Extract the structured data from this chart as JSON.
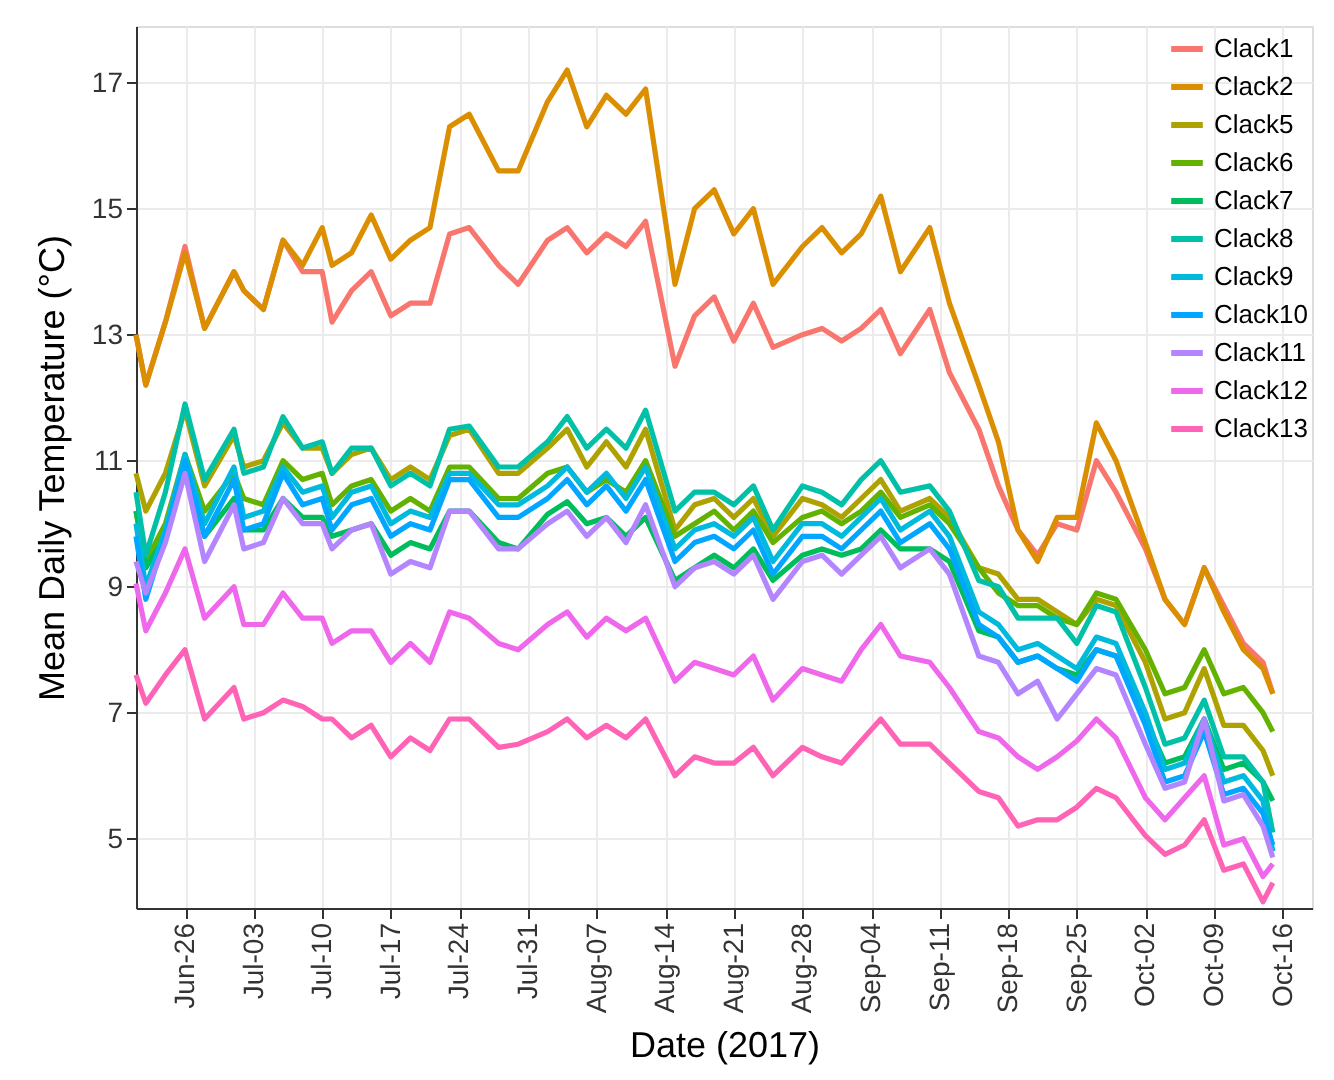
{
  "chart_data": {
    "type": "line",
    "xlabel": "Date (2017)",
    "ylabel": "Mean Daily Temperature (°C)",
    "x": [
      "2017-06-21",
      "2017-06-22",
      "2017-06-24",
      "2017-06-26",
      "2017-06-28",
      "2017-07-01",
      "2017-07-02",
      "2017-07-04",
      "2017-07-06",
      "2017-07-08",
      "2017-07-10",
      "2017-07-11",
      "2017-07-13",
      "2017-07-15",
      "2017-07-17",
      "2017-07-19",
      "2017-07-21",
      "2017-07-23",
      "2017-07-25",
      "2017-07-28",
      "2017-07-30",
      "2017-08-02",
      "2017-08-04",
      "2017-08-06",
      "2017-08-08",
      "2017-08-10",
      "2017-08-12",
      "2017-08-15",
      "2017-08-17",
      "2017-08-19",
      "2017-08-21",
      "2017-08-23",
      "2017-08-25",
      "2017-08-28",
      "2017-08-30",
      "2017-09-01",
      "2017-09-03",
      "2017-09-05",
      "2017-09-07",
      "2017-09-10",
      "2017-09-12",
      "2017-09-15",
      "2017-09-17",
      "2017-09-19",
      "2017-09-21",
      "2017-09-23",
      "2017-09-25",
      "2017-09-27",
      "2017-09-29",
      "2017-10-02",
      "2017-10-04",
      "2017-10-06",
      "2017-10-08",
      "2017-10-10",
      "2017-10-12",
      "2017-10-14",
      "2017-10-15"
    ],
    "series": [
      {
        "name": "Clack1",
        "color": "#f8766d",
        "values": [
          13.0,
          12.2,
          13.2,
          14.4,
          13.1,
          14.0,
          13.7,
          13.4,
          14.5,
          14.0,
          14.0,
          13.2,
          13.7,
          14.0,
          13.3,
          13.5,
          13.5,
          14.6,
          14.7,
          14.1,
          13.8,
          14.5,
          14.7,
          14.3,
          14.6,
          14.4,
          14.8,
          12.5,
          13.3,
          13.6,
          12.9,
          13.5,
          12.8,
          13.0,
          13.1,
          12.9,
          13.1,
          13.4,
          12.7,
          13.4,
          12.4,
          11.5,
          10.6,
          9.9,
          9.5,
          10.0,
          9.9,
          11.0,
          10.5,
          9.6,
          8.8,
          8.4,
          9.3,
          8.7,
          8.1,
          7.8,
          7.3
        ]
      },
      {
        "name": "Clack2",
        "color": "#db8e00",
        "values": [
          13.0,
          12.2,
          13.2,
          14.3,
          13.1,
          14.0,
          13.7,
          13.4,
          14.5,
          14.1,
          14.7,
          14.1,
          14.3,
          14.9,
          14.2,
          14.5,
          14.7,
          16.3,
          16.5,
          15.6,
          15.6,
          16.7,
          17.2,
          16.3,
          16.8,
          16.5,
          16.9,
          13.8,
          15.0,
          15.3,
          14.6,
          15.0,
          13.8,
          14.4,
          14.7,
          14.3,
          14.6,
          15.2,
          14.0,
          14.7,
          13.5,
          12.2,
          11.3,
          9.9,
          9.4,
          10.1,
          10.1,
          11.6,
          11.0,
          9.7,
          8.8,
          8.4,
          9.3,
          8.6,
          8.0,
          7.7,
          7.3
        ]
      },
      {
        "name": "Clack5",
        "color": "#aea200",
        "values": [
          10.8,
          10.2,
          10.8,
          11.8,
          10.6,
          11.4,
          10.9,
          11.0,
          11.6,
          11.2,
          11.2,
          10.8,
          11.1,
          11.2,
          10.7,
          10.9,
          10.7,
          11.4,
          11.5,
          10.8,
          10.8,
          11.2,
          11.5,
          10.9,
          11.3,
          10.9,
          11.5,
          9.9,
          10.3,
          10.4,
          10.1,
          10.4,
          9.8,
          10.4,
          10.3,
          10.1,
          10.4,
          10.7,
          10.2,
          10.4,
          10.1,
          9.3,
          9.2,
          8.8,
          8.8,
          8.6,
          8.4,
          8.8,
          8.7,
          7.8,
          6.9,
          7.0,
          7.7,
          6.8,
          6.8,
          6.4,
          6.0
        ]
      },
      {
        "name": "Clack6",
        "color": "#64b200",
        "values": [
          10.2,
          9.4,
          10.0,
          11.1,
          10.2,
          10.8,
          10.4,
          10.3,
          11.0,
          10.7,
          10.8,
          10.3,
          10.6,
          10.7,
          10.2,
          10.4,
          10.2,
          10.9,
          10.9,
          10.4,
          10.4,
          10.8,
          10.9,
          10.5,
          10.7,
          10.5,
          11.0,
          9.8,
          10.0,
          10.2,
          9.9,
          10.2,
          9.7,
          10.1,
          10.2,
          10.0,
          10.2,
          10.5,
          10.1,
          10.3,
          10.0,
          9.3,
          8.9,
          8.7,
          8.7,
          8.5,
          8.4,
          8.9,
          8.8,
          8.0,
          7.3,
          7.4,
          8.0,
          7.3,
          7.4,
          7.0,
          6.7
        ]
      },
      {
        "name": "Clack7",
        "color": "#00bd5c",
        "values": [
          10.2,
          9.3,
          9.8,
          10.8,
          9.8,
          10.4,
          9.9,
          9.9,
          10.4,
          10.1,
          10.1,
          9.8,
          9.9,
          10.0,
          9.5,
          9.7,
          9.6,
          10.2,
          10.2,
          9.7,
          9.6,
          10.15,
          10.35,
          10.0,
          10.1,
          9.8,
          10.1,
          9.1,
          9.3,
          9.5,
          9.3,
          9.6,
          9.1,
          9.5,
          9.6,
          9.5,
          9.6,
          9.9,
          9.6,
          9.6,
          9.4,
          8.3,
          8.2,
          7.8,
          7.9,
          7.7,
          7.6,
          8.0,
          7.9,
          6.9,
          6.2,
          6.3,
          6.9,
          6.1,
          6.2,
          5.9,
          5.6
        ]
      },
      {
        "name": "Clack8",
        "color": "#00c1a7",
        "values": [
          10.5,
          9.5,
          10.5,
          11.9,
          10.7,
          11.5,
          10.8,
          10.9,
          11.7,
          11.2,
          11.3,
          10.8,
          11.2,
          11.2,
          10.6,
          10.8,
          10.6,
          11.5,
          11.55,
          10.9,
          10.9,
          11.3,
          11.7,
          11.2,
          11.5,
          11.2,
          11.8,
          10.2,
          10.5,
          10.5,
          10.3,
          10.6,
          9.9,
          10.6,
          10.5,
          10.3,
          10.7,
          11.0,
          10.5,
          10.6,
          10.2,
          9.1,
          9.0,
          8.5,
          8.5,
          8.5,
          8.1,
          8.7,
          8.6,
          7.4,
          6.5,
          6.6,
          7.2,
          6.3,
          6.3,
          5.9,
          5.1
        ]
      },
      {
        "name": "Clack9",
        "color": "#00bade",
        "values": [
          10.0,
          9.0,
          9.9,
          11.1,
          10.0,
          10.9,
          10.1,
          10.2,
          10.9,
          10.5,
          10.6,
          10.1,
          10.5,
          10.6,
          10.0,
          10.2,
          10.1,
          10.8,
          10.8,
          10.3,
          10.3,
          10.6,
          10.9,
          10.5,
          10.8,
          10.4,
          10.9,
          9.6,
          9.9,
          10.0,
          9.8,
          10.1,
          9.4,
          10.0,
          10.0,
          9.8,
          10.1,
          10.4,
          9.9,
          10.2,
          9.8,
          8.6,
          8.4,
          8.0,
          8.1,
          7.9,
          7.7,
          8.2,
          8.1,
          7.0,
          6.1,
          6.2,
          6.9,
          5.9,
          6.0,
          5.6,
          4.8
        ]
      },
      {
        "name": "Clack10",
        "color": "#00a6ff",
        "values": [
          9.8,
          8.8,
          9.8,
          11.0,
          9.8,
          10.7,
          9.9,
          10.0,
          10.8,
          10.3,
          10.4,
          9.9,
          10.3,
          10.4,
          9.8,
          10.0,
          9.9,
          10.7,
          10.7,
          10.1,
          10.1,
          10.4,
          10.7,
          10.3,
          10.6,
          10.2,
          10.7,
          9.4,
          9.7,
          9.8,
          9.6,
          9.9,
          9.2,
          9.8,
          9.8,
          9.6,
          9.9,
          10.2,
          9.7,
          10.0,
          9.6,
          8.4,
          8.2,
          7.8,
          7.9,
          7.7,
          7.5,
          8.0,
          7.9,
          6.8,
          5.9,
          6.0,
          6.7,
          5.7,
          5.8,
          5.4,
          4.9
        ]
      },
      {
        "name": "Clack11",
        "color": "#b385ff",
        "values": [
          9.4,
          8.9,
          9.7,
          10.8,
          9.4,
          10.3,
          9.6,
          9.7,
          10.4,
          10.0,
          10.0,
          9.6,
          9.9,
          10.0,
          9.2,
          9.4,
          9.3,
          10.2,
          10.2,
          9.6,
          9.6,
          10.0,
          10.2,
          9.8,
          10.1,
          9.7,
          10.3,
          9.0,
          9.3,
          9.4,
          9.2,
          9.5,
          8.8,
          9.4,
          9.5,
          9.2,
          9.5,
          9.8,
          9.3,
          9.6,
          9.2,
          7.9,
          7.8,
          7.3,
          7.5,
          6.9,
          7.3,
          7.7,
          7.6,
          6.5,
          5.8,
          5.9,
          6.9,
          5.6,
          5.7,
          5.2,
          4.7
        ]
      },
      {
        "name": "Clack12",
        "color": "#ef67eb",
        "values": [
          9.05,
          8.3,
          8.9,
          9.6,
          8.5,
          9.0,
          8.4,
          8.4,
          8.9,
          8.5,
          8.5,
          8.1,
          8.3,
          8.3,
          7.8,
          8.1,
          7.8,
          8.6,
          8.5,
          8.1,
          8.0,
          8.4,
          8.6,
          8.2,
          8.5,
          8.3,
          8.5,
          7.5,
          7.8,
          7.7,
          7.6,
          7.9,
          7.2,
          7.7,
          7.6,
          7.5,
          8.0,
          8.4,
          7.9,
          7.8,
          7.4,
          6.7,
          6.6,
          6.3,
          6.1,
          6.3,
          6.55,
          6.9,
          6.6,
          5.65,
          5.3,
          5.65,
          6.0,
          4.9,
          5.0,
          4.4,
          4.6
        ]
      },
      {
        "name": "Clack13",
        "color": "#ff63b6",
        "values": [
          7.6,
          7.15,
          7.6,
          8.0,
          6.9,
          7.4,
          6.9,
          7.0,
          7.2,
          7.1,
          6.9,
          6.9,
          6.6,
          6.8,
          6.3,
          6.6,
          6.4,
          6.9,
          6.9,
          6.45,
          6.5,
          6.7,
          6.9,
          6.6,
          6.8,
          6.6,
          6.9,
          6.0,
          6.3,
          6.2,
          6.2,
          6.45,
          6.0,
          6.45,
          6.3,
          6.2,
          6.55,
          6.9,
          6.5,
          6.5,
          6.2,
          5.75,
          5.65,
          5.2,
          5.3,
          5.3,
          5.5,
          5.8,
          5.65,
          5.05,
          4.75,
          4.9,
          5.3,
          4.5,
          4.6,
          4.0,
          4.3
        ]
      }
    ],
    "xlim": [
      "2017-06-21",
      "2017-10-19"
    ],
    "xticks": [
      {
        "value": "2017-06-26",
        "label": "Jun-26"
      },
      {
        "value": "2017-07-03",
        "label": "Jul-03"
      },
      {
        "value": "2017-07-10",
        "label": "Jul-10"
      },
      {
        "value": "2017-07-17",
        "label": "Jul-17"
      },
      {
        "value": "2017-07-24",
        "label": "Jul-24"
      },
      {
        "value": "2017-07-31",
        "label": "Jul-31"
      },
      {
        "value": "2017-08-07",
        "label": "Aug-07"
      },
      {
        "value": "2017-08-14",
        "label": "Aug-14"
      },
      {
        "value": "2017-08-21",
        "label": "Aug-21"
      },
      {
        "value": "2017-08-28",
        "label": "Aug-28"
      },
      {
        "value": "2017-09-04",
        "label": "Sep-04"
      },
      {
        "value": "2017-09-11",
        "label": "Sep-11"
      },
      {
        "value": "2017-09-18",
        "label": "Sep-18"
      },
      {
        "value": "2017-09-25",
        "label": "Sep-25"
      },
      {
        "value": "2017-10-02",
        "label": "Oct-02"
      },
      {
        "value": "2017-10-09",
        "label": "Oct-09"
      },
      {
        "value": "2017-10-16",
        "label": "Oct-16"
      }
    ],
    "ylim": [
      3.9,
      17.9
    ],
    "yticks": [
      5,
      7,
      9,
      11,
      13,
      15,
      17
    ],
    "grid": true,
    "legend": "top right",
    "marker": "none",
    "line_style": "solid"
  }
}
